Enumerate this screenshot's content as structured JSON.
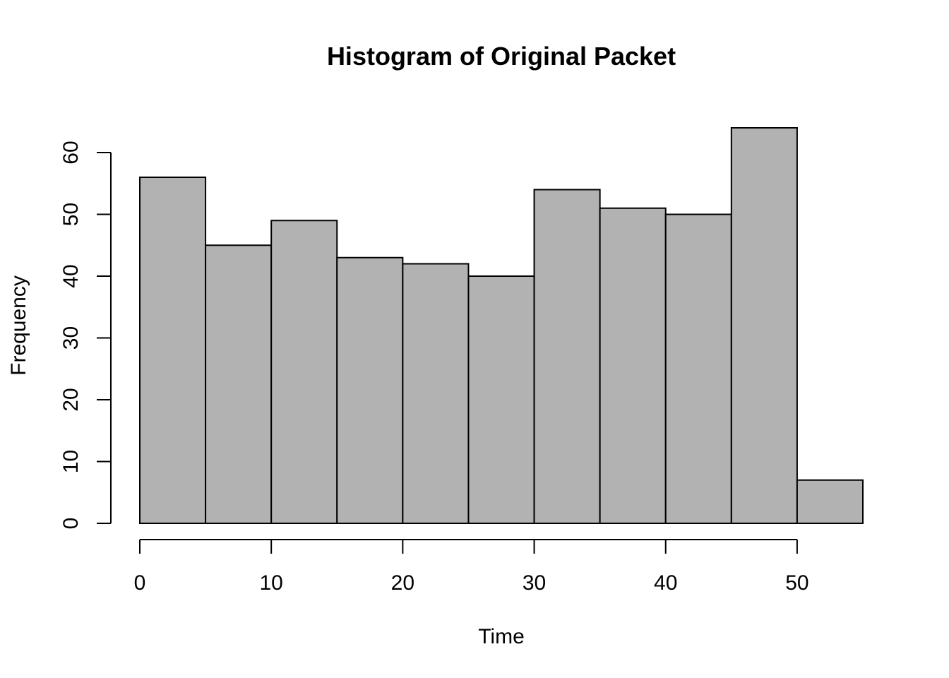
{
  "chart_data": {
    "type": "histogram",
    "title": "Histogram of Original Packet",
    "xlabel": "Time",
    "ylabel": "Frequency",
    "bin_edges": [
      0,
      5,
      10,
      15,
      20,
      25,
      30,
      35,
      40,
      45,
      50,
      55
    ],
    "values": [
      56,
      45,
      49,
      43,
      42,
      40,
      54,
      51,
      50,
      64,
      7
    ],
    "xlim": [
      0,
      55
    ],
    "ylim": [
      0,
      64
    ],
    "x_ticks": [
      0,
      10,
      20,
      30,
      40,
      50
    ],
    "x_tick_labels": [
      "0",
      "10",
      "20",
      "30",
      "40",
      "50"
    ],
    "y_ticks": [
      0,
      10,
      20,
      30,
      40,
      50,
      60
    ],
    "y_tick_labels": [
      "0",
      "10",
      "20",
      "30",
      "40",
      "50",
      "60"
    ],
    "bar_color": "#b2b2b2",
    "edge_color": "#000000",
    "grid": false,
    "legend": "none"
  }
}
